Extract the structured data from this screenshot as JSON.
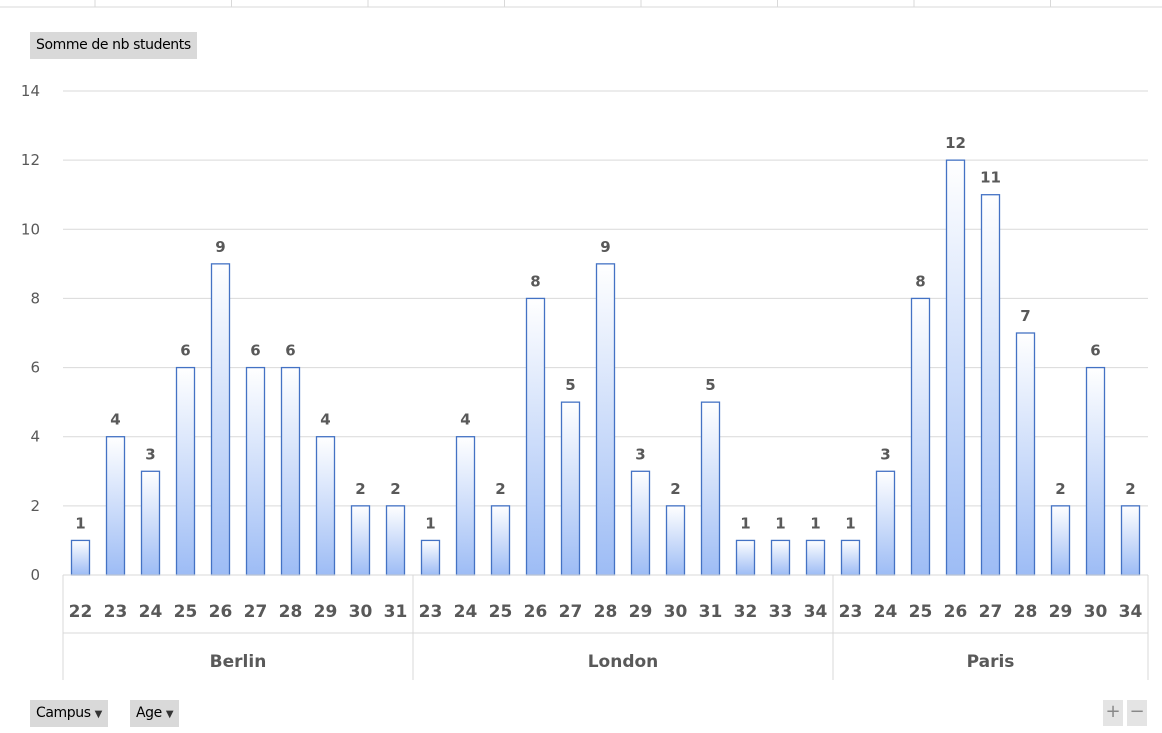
{
  "field_buttons": {
    "value_field": "Somme de nb students",
    "row_fields": [
      {
        "label": "Campus",
        "icon": "dropdown-caret-icon"
      },
      {
        "label": "Age",
        "icon": "dropdown-caret-icon"
      }
    ]
  },
  "controls": {
    "zoom_in": "+",
    "zoom_out": "−"
  },
  "colors": {
    "bar_top": "#ffffff",
    "bar_bottom": "#9dbcf5",
    "bar_stroke": "#4472c4",
    "grid": "#d9d9d9",
    "text": "#595959"
  },
  "chart_data": {
    "type": "bar",
    "title": "",
    "xlabel": "",
    "ylabel": "",
    "ylim": [
      0,
      14
    ],
    "yticks": [
      0,
      2,
      4,
      6,
      8,
      10,
      12,
      14
    ],
    "grid": true,
    "data_labels": true,
    "groups": [
      {
        "name": "Berlin",
        "categories": [
          "22",
          "23",
          "24",
          "25",
          "26",
          "27",
          "28",
          "29",
          "30",
          "31"
        ],
        "values": [
          1,
          4,
          3,
          6,
          9,
          6,
          6,
          4,
          2,
          2
        ]
      },
      {
        "name": "London",
        "categories": [
          "23",
          "24",
          "25",
          "26",
          "27",
          "28",
          "29",
          "30",
          "31",
          "32",
          "33",
          "34"
        ],
        "values": [
          1,
          4,
          2,
          8,
          5,
          9,
          3,
          2,
          5,
          1,
          1,
          1
        ]
      },
      {
        "name": "Paris",
        "categories": [
          "23",
          "24",
          "25",
          "26",
          "27",
          "28",
          "29",
          "30",
          "34"
        ],
        "values": [
          1,
          3,
          8,
          12,
          11,
          7,
          2,
          6,
          2
        ]
      }
    ]
  }
}
